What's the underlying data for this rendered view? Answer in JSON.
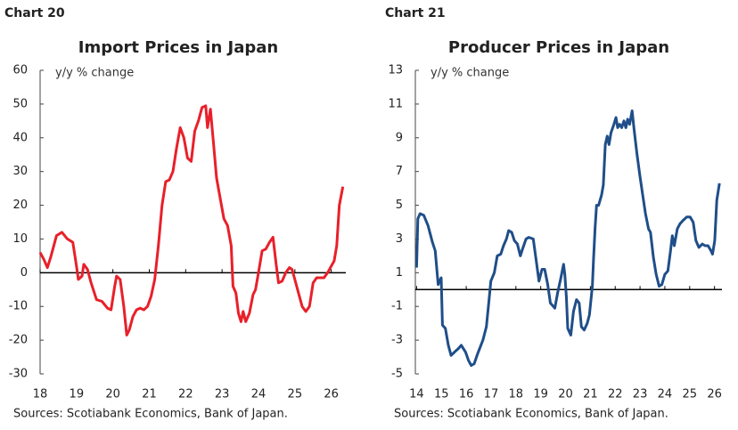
{
  "chart_data": [
    {
      "type": "line",
      "label": "Chart 20",
      "title": "Import Prices in Japan",
      "subtitle": "y/y % change",
      "source": "Sources: Scotiabank Economics, Bank of Japan.",
      "color": "#e8202a",
      "zero_line": true,
      "xlim": [
        18,
        26.4
      ],
      "xticks": [
        18,
        19,
        20,
        21,
        22,
        23,
        24,
        25,
        26
      ],
      "ylim": [
        -30,
        60
      ],
      "yticks": [
        -30,
        -20,
        -10,
        0,
        10,
        20,
        30,
        40,
        50,
        60
      ],
      "x": [
        18.0,
        18.1,
        18.2,
        18.3,
        18.45,
        18.6,
        18.75,
        18.9,
        19.0,
        19.05,
        19.15,
        19.2,
        19.3,
        19.4,
        19.55,
        19.7,
        19.85,
        19.95,
        20.05,
        20.1,
        20.2,
        20.3,
        20.38,
        20.45,
        20.55,
        20.65,
        20.75,
        20.85,
        20.95,
        21.05,
        21.15,
        21.25,
        21.35,
        21.45,
        21.55,
        21.65,
        21.75,
        21.85,
        21.95,
        22.05,
        22.15,
        22.25,
        22.35,
        22.45,
        22.55,
        22.6,
        22.68,
        22.75,
        22.85,
        22.95,
        23.05,
        23.15,
        23.25,
        23.3,
        23.38,
        23.45,
        23.52,
        23.58,
        23.65,
        23.75,
        23.85,
        23.92,
        24.0,
        24.1,
        24.2,
        24.3,
        24.4,
        24.48,
        24.55,
        24.65,
        24.75,
        24.85,
        24.92,
        25.0,
        25.1,
        25.2,
        25.3,
        25.4,
        25.5,
        25.6,
        25.7,
        25.8,
        25.9,
        26.0,
        26.08,
        26.15,
        26.22,
        26.32
      ],
      "values": [
        6,
        4,
        1.5,
        5,
        11,
        12,
        10,
        9,
        2,
        -2,
        -1,
        2.5,
        1,
        -3,
        -8,
        -8.5,
        -10.5,
        -11,
        -4,
        -1,
        -2,
        -10,
        -18.5,
        -17,
        -13,
        -11,
        -10.5,
        -11,
        -10,
        -7,
        -2,
        8,
        20,
        27,
        27.5,
        30,
        37,
        43,
        40,
        34,
        33,
        42,
        45,
        49,
        49.5,
        43,
        48.5,
        40,
        28,
        22,
        16,
        14,
        8,
        -4,
        -6,
        -12,
        -14.5,
        -11.5,
        -14.5,
        -12,
        -6.5,
        -5,
        0,
        6.5,
        7,
        9,
        10.5,
        3,
        -3,
        -2.5,
        0,
        1.5,
        1,
        -2,
        -6,
        -10,
        -11.5,
        -10,
        -3,
        -1.5,
        -1.5,
        -1.5,
        0,
        2,
        3.5,
        8,
        20,
        25.5
      ]
    },
    {
      "type": "line",
      "label": "Chart 21",
      "title": "Producer Prices in Japan",
      "subtitle": "y/y % change",
      "source": "Sources: Scotiabank Economics, Bank of Japan.",
      "color": "#1f4e89",
      "zero_line": true,
      "xlim": [
        13.95,
        26.3
      ],
      "xticks": [
        14,
        15,
        16,
        17,
        18,
        19,
        20,
        21,
        22,
        23,
        24,
        25,
        26
      ],
      "ylim": [
        -5,
        13
      ],
      "yticks": [
        -5,
        -3,
        -1,
        1,
        3,
        5,
        7,
        9,
        11,
        13
      ],
      "x": [
        14.0,
        14.05,
        14.14,
        14.29,
        14.46,
        14.64,
        14.75,
        14.87,
        14.99,
        15.04,
        15.16,
        15.28,
        15.39,
        15.53,
        15.68,
        15.8,
        15.97,
        16.09,
        16.2,
        16.32,
        16.46,
        16.67,
        16.81,
        16.92,
        16.99,
        17.13,
        17.25,
        17.39,
        17.5,
        17.62,
        17.71,
        17.83,
        17.94,
        18.06,
        18.18,
        18.29,
        18.41,
        18.52,
        18.7,
        18.81,
        18.93,
        19.05,
        19.16,
        19.28,
        19.39,
        19.57,
        19.68,
        19.8,
        19.92,
        19.97,
        20.03,
        20.09,
        20.21,
        20.32,
        20.44,
        20.55,
        20.64,
        20.75,
        20.87,
        20.96,
        21.08,
        21.13,
        21.19,
        21.25,
        21.33,
        21.45,
        21.52,
        21.6,
        21.68,
        21.75,
        21.83,
        21.95,
        22.03,
        22.1,
        22.18,
        22.26,
        22.35,
        22.43,
        22.5,
        22.58,
        22.68,
        22.76,
        22.87,
        22.99,
        23.11,
        23.22,
        23.34,
        23.42,
        23.54,
        23.65,
        23.77,
        23.88,
        24.0,
        24.12,
        24.23,
        24.3,
        24.38,
        24.5,
        24.61,
        24.73,
        24.88,
        25.02,
        25.14,
        25.25,
        25.37,
        25.51,
        25.62,
        25.74,
        25.86,
        25.92,
        26.01,
        26.09,
        26.2
      ],
      "values": [
        1.3,
        4.2,
        4.5,
        4.4,
        3.8,
        2.8,
        2.3,
        0.3,
        0.7,
        -2.1,
        -2.3,
        -3.3,
        -3.9,
        -3.7,
        -3.5,
        -3.3,
        -3.7,
        -4.2,
        -4.5,
        -4.4,
        -3.8,
        -3.0,
        -2.2,
        -0.6,
        0.5,
        1.0,
        2.0,
        2.1,
        2.6,
        3.0,
        3.5,
        3.4,
        2.9,
        2.7,
        2.0,
        2.5,
        3.0,
        3.1,
        3.0,
        1.8,
        0.5,
        1.2,
        1.2,
        0.3,
        -0.8,
        -1.1,
        -0.2,
        0.6,
        1.5,
        0.9,
        -0.4,
        -2.3,
        -2.7,
        -1.3,
        -0.6,
        -0.8,
        -2.2,
        -2.4,
        -2.0,
        -1.5,
        0.2,
        1.9,
        3.7,
        5.0,
        5.0,
        5.6,
        6.2,
        8.6,
        9.1,
        8.6,
        9.3,
        9.8,
        10.2,
        9.6,
        9.8,
        9.6,
        10.0,
        9.6,
        10.1,
        9.8,
        10.6,
        9.5,
        8.1,
        6.8,
        5.6,
        4.5,
        3.6,
        3.4,
        1.9,
        0.9,
        0.2,
        0.3,
        0.9,
        1.1,
        2.3,
        3.2,
        2.6,
        3.6,
        3.9,
        4.1,
        4.3,
        4.3,
        4.0,
        2.9,
        2.5,
        2.7,
        2.6,
        2.6,
        2.3,
        2.1,
        2.9,
        5.3,
        6.3
      ]
    }
  ]
}
